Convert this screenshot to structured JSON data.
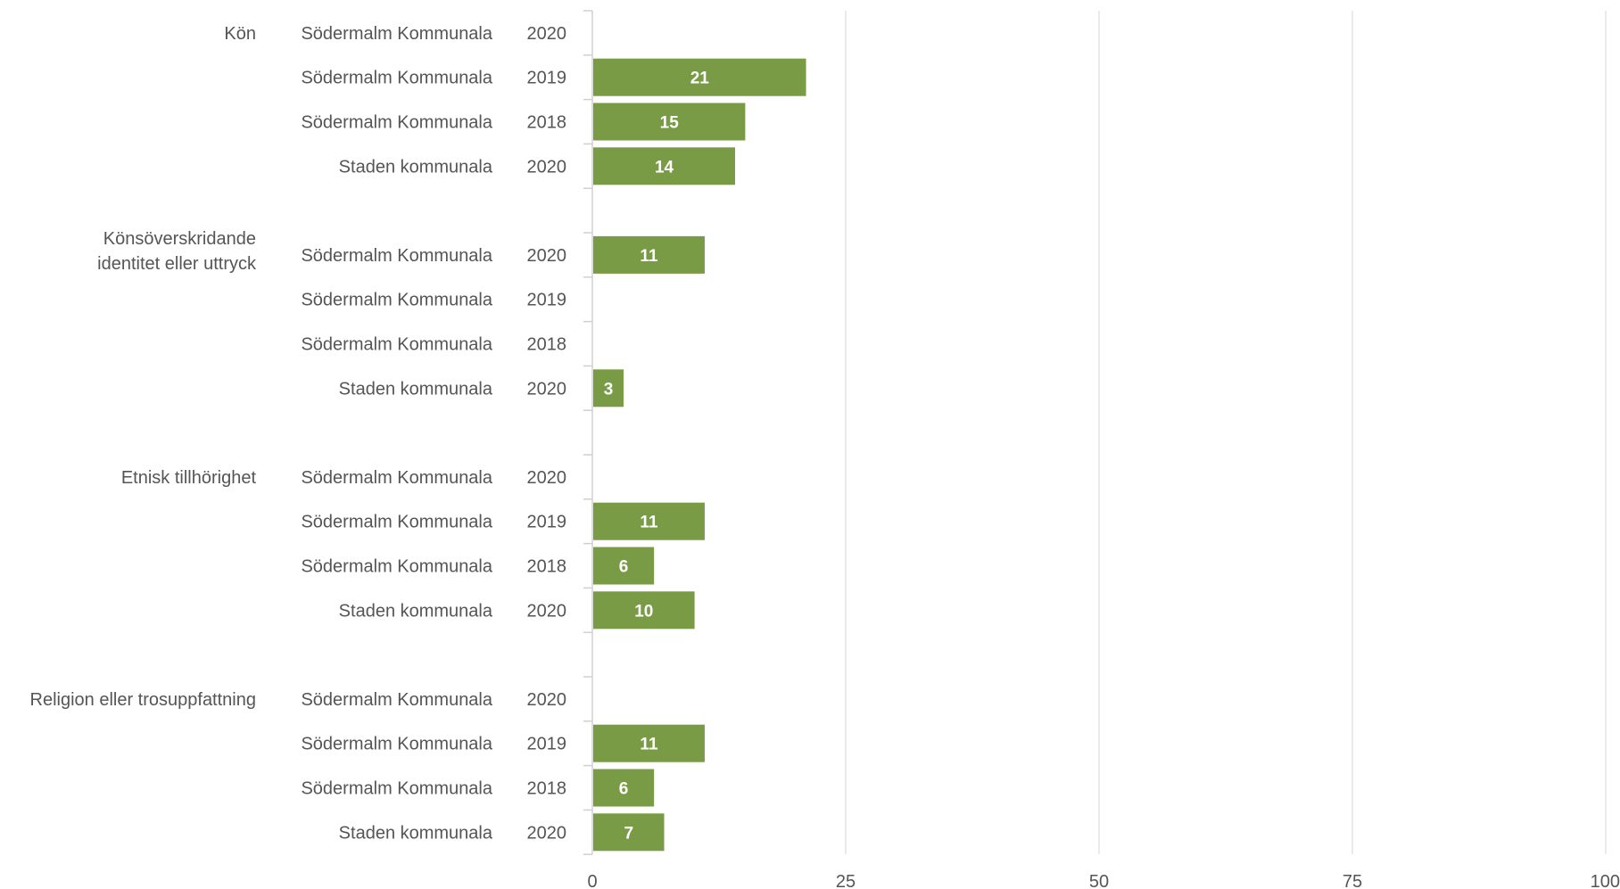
{
  "chart_data": {
    "type": "bar",
    "orientation": "horizontal",
    "title": "",
    "xlabel": "",
    "ylabel": "",
    "xlim": [
      0,
      100
    ],
    "xticks": [
      "0",
      "25",
      "50",
      "75",
      "100"
    ],
    "grid": true,
    "legend": "none",
    "colors": {
      "bar": "#7a9b45",
      "grid": "#e3e3e3",
      "label": "#555555",
      "data_label": "#ffffff"
    },
    "groups": [
      {
        "name": "Kön",
        "rows": [
          {
            "unit": "Södermalm Kommunala",
            "year": "2020",
            "value": null
          },
          {
            "unit": "Södermalm Kommunala",
            "year": "2019",
            "value": 21
          },
          {
            "unit": "Södermalm Kommunala",
            "year": "2018",
            "value": 15
          },
          {
            "unit": "Staden kommunala",
            "year": "2020",
            "value": 14
          }
        ]
      },
      {
        "name": "Könsöverskridande identitet eller uttryck",
        "name_lines": [
          "Könsöverskridande",
          "identitet eller uttryck"
        ],
        "rows": [
          {
            "unit": "Södermalm Kommunala",
            "year": "2020",
            "value": 11
          },
          {
            "unit": "Södermalm Kommunala",
            "year": "2019",
            "value": null
          },
          {
            "unit": "Södermalm Kommunala",
            "year": "2018",
            "value": null
          },
          {
            "unit": "Staden kommunala",
            "year": "2020",
            "value": 3
          }
        ]
      },
      {
        "name": "Etnisk tillhörighet",
        "rows": [
          {
            "unit": "Södermalm Kommunala",
            "year": "2020",
            "value": null
          },
          {
            "unit": "Södermalm Kommunala",
            "year": "2019",
            "value": 11
          },
          {
            "unit": "Södermalm Kommunala",
            "year": "2018",
            "value": 6
          },
          {
            "unit": "Staden kommunala",
            "year": "2020",
            "value": 10
          }
        ]
      },
      {
        "name": "Religion eller trosuppfattning",
        "rows": [
          {
            "unit": "Södermalm Kommunala",
            "year": "2020",
            "value": null
          },
          {
            "unit": "Södermalm Kommunala",
            "year": "2019",
            "value": 11
          },
          {
            "unit": "Södermalm Kommunala",
            "year": "2018",
            "value": 6
          },
          {
            "unit": "Staden kommunala",
            "year": "2020",
            "value": 7
          }
        ]
      }
    ]
  }
}
